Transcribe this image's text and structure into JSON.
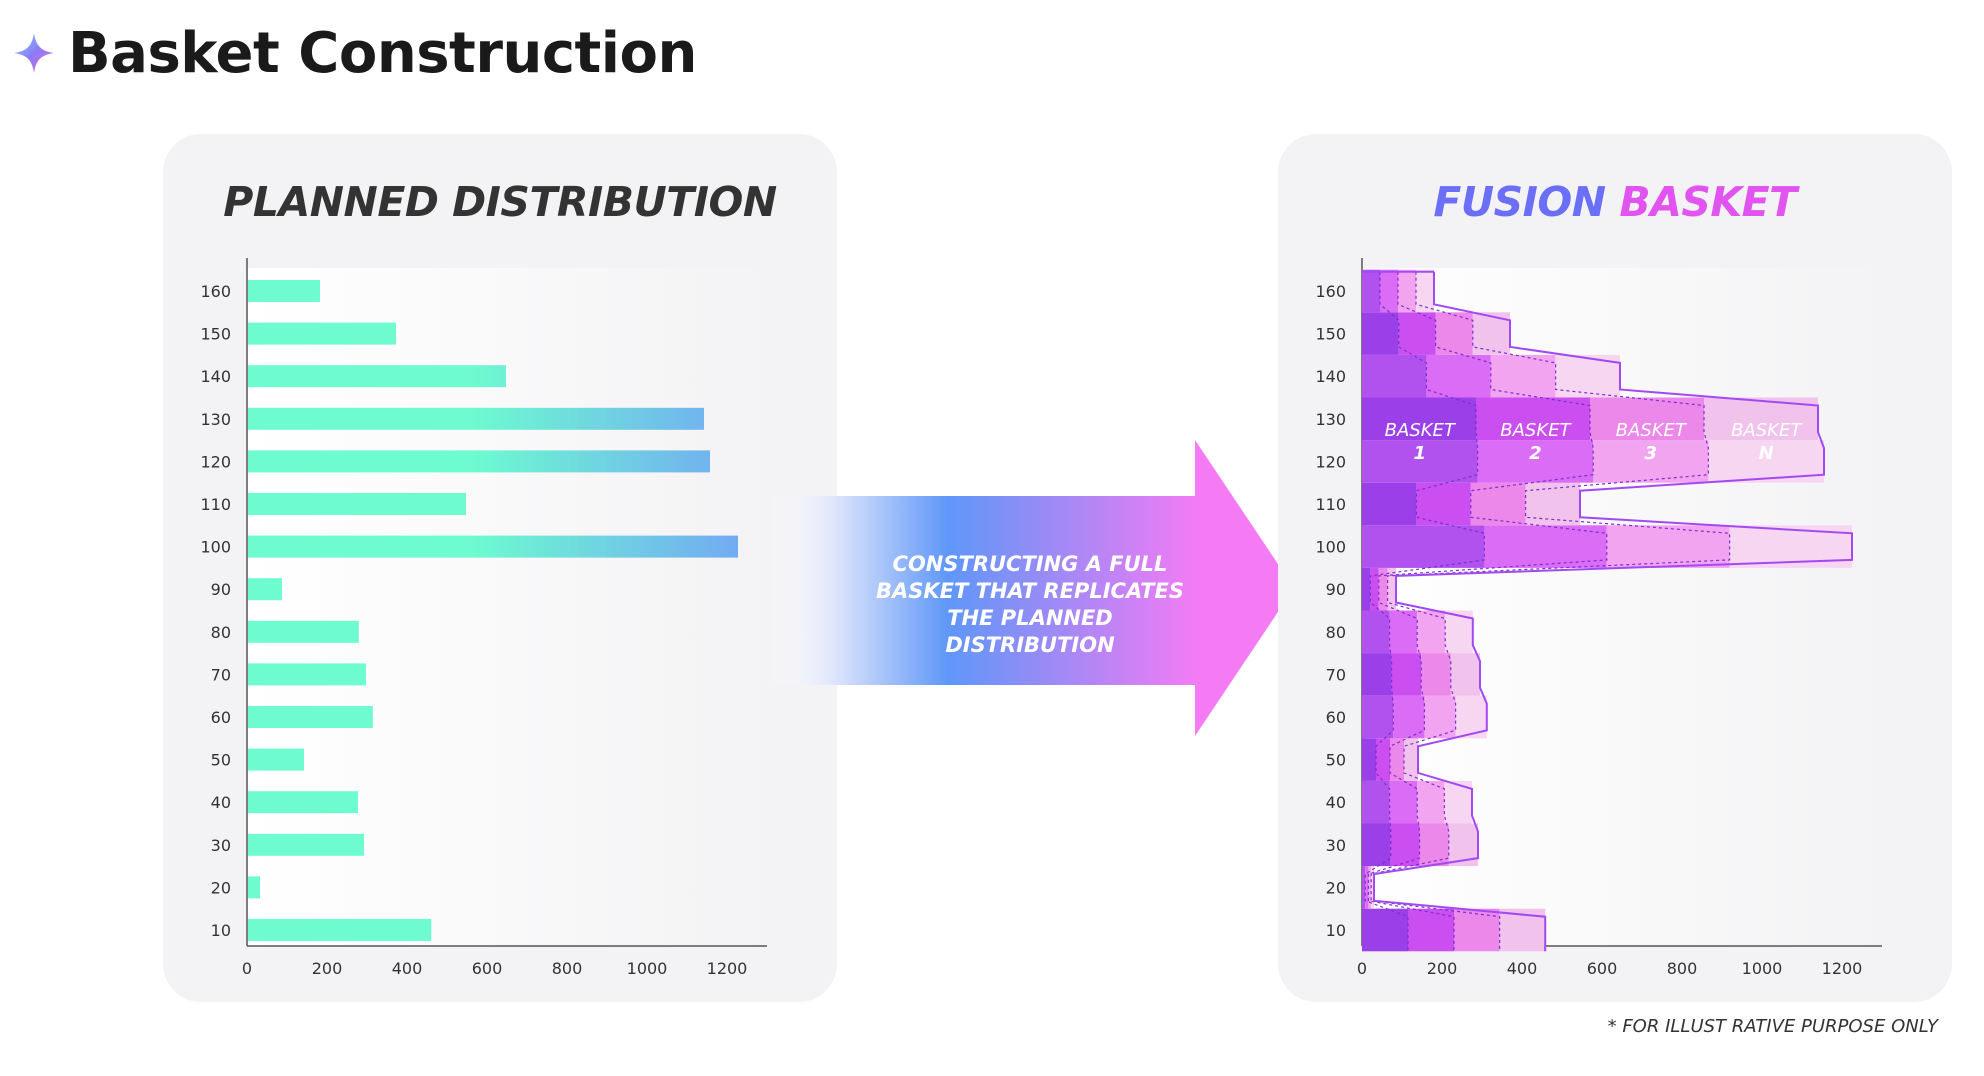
{
  "page": {
    "title": "Basket Construction",
    "footnote": "* FOR ILLUST RATIVE PURPOSE ONLY"
  },
  "arrow": {
    "lines": [
      "CONSTRUCTING A FULL",
      "BASKET THAT REPLICATES",
      "THE PLANNED DISTRIBUTION"
    ]
  },
  "colors": {
    "bar_start": "#6dfbcf",
    "bar_end": "#72a8f4",
    "fusion_blue": "#6b6ef7",
    "fusion_pink": "#e254f0",
    "basket_outline": "#a349f3",
    "arrow_blue": "#5f97f8",
    "arrow_pink": "#f57bf5"
  },
  "icons": {
    "title_icon": "sparkle-icon",
    "arrow": "right-arrow-shape"
  },
  "chart_data": [
    {
      "type": "bar",
      "orientation": "horizontal",
      "title": "PLANNED DISTRIBUTION",
      "categories": [
        "10",
        "20",
        "30",
        "40",
        "50",
        "60",
        "70",
        "80",
        "90",
        "100",
        "110",
        "120",
        "130",
        "140",
        "150",
        "160"
      ],
      "values": [
        458,
        30,
        290,
        275,
        140,
        312,
        295,
        277,
        85,
        1225,
        545,
        1155,
        1140,
        645,
        370,
        180
      ],
      "xlim": [
        0,
        1300
      ],
      "xticks": [
        "0",
        "200",
        "400",
        "600",
        "800",
        "1000",
        "1200"
      ],
      "grid": false
    },
    {
      "type": "area",
      "orientation": "horizontal",
      "stacked": true,
      "title_parts": [
        "FUSION",
        "BASKET"
      ],
      "categories": [
        "10",
        "20",
        "30",
        "40",
        "50",
        "60",
        "70",
        "80",
        "90",
        "100",
        "110",
        "120",
        "130",
        "140",
        "150",
        "160"
      ],
      "series": [
        {
          "name": "BASKET 1",
          "values": [
            115,
            8,
            72,
            69,
            35,
            78,
            74,
            69,
            21,
            306,
            136,
            289,
            285,
            161,
            92,
            45
          ]
        },
        {
          "name": "BASKET 2",
          "values": [
            115,
            8,
            72,
            69,
            35,
            78,
            74,
            69,
            21,
            306,
            136,
            289,
            285,
            161,
            92,
            45
          ]
        },
        {
          "name": "BASKET 3",
          "values": [
            114,
            7,
            73,
            68,
            35,
            78,
            74,
            70,
            22,
            307,
            137,
            288,
            285,
            162,
            93,
            45
          ]
        },
        {
          "name": "BASKET N",
          "values": [
            114,
            7,
            73,
            69,
            35,
            78,
            73,
            69,
            21,
            306,
            136,
            289,
            285,
            161,
            93,
            45
          ]
        }
      ],
      "series_labels": [
        [
          "BASKET",
          "1"
        ],
        [
          "BASKET",
          "2"
        ],
        [
          "BASKET",
          "3"
        ],
        [
          "BASKET",
          "N"
        ]
      ],
      "xlim": [
        0,
        1300
      ],
      "xticks": [
        "0",
        "200",
        "400",
        "600",
        "800",
        "1000",
        "1200"
      ],
      "grid": false
    }
  ]
}
